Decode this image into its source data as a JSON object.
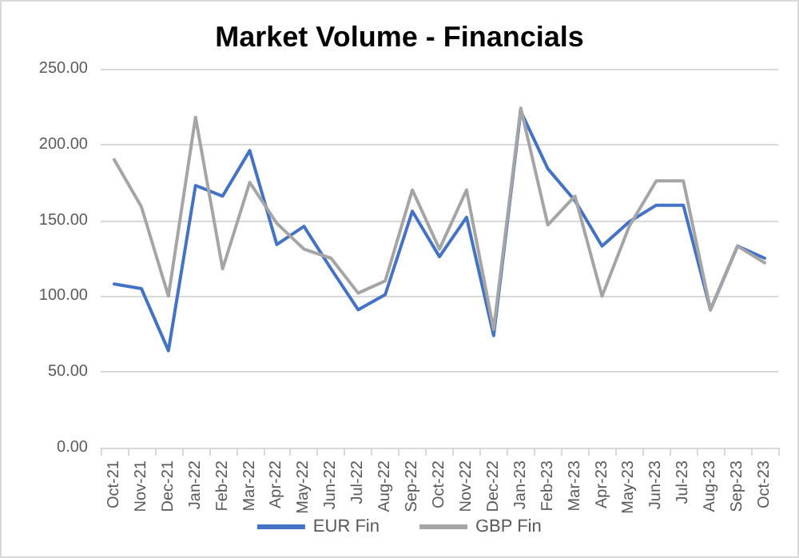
{
  "chart_data": {
    "type": "line",
    "title": "Market Volume - Financials",
    "categories": [
      "Oct-21",
      "Nov-21",
      "Dec-21",
      "Jan-22",
      "Feb-22",
      "Mar-22",
      "Apr-22",
      "May-22",
      "Jun-22",
      "Jul-22",
      "Aug-22",
      "Sep-22",
      "Oct-22",
      "Nov-22",
      "Dec-22",
      "Jan-23",
      "Feb-23",
      "Mar-23",
      "Apr-23",
      "May-23",
      "Jun-23",
      "Jul-23",
      "Aug-23",
      "Sep-23",
      "Oct-23"
    ],
    "series": [
      {
        "name": "EUR Fin",
        "color": "#4472c4",
        "values": [
          108,
          105,
          64,
          173,
          166,
          196,
          134,
          146,
          118,
          91,
          101,
          156,
          126,
          152,
          74,
          222,
          184,
          163,
          133,
          149,
          160,
          160,
          91,
          133,
          125
        ]
      },
      {
        "name": "GBP Fin",
        "color": "#a5a5a5",
        "values": [
          190,
          159,
          100,
          218,
          118,
          175,
          148,
          131,
          125,
          102,
          110,
          170,
          131,
          170,
          78,
          224,
          147,
          166,
          100,
          146,
          176,
          176,
          91,
          133,
          122
        ]
      }
    ],
    "ylim": [
      0,
      250
    ],
    "yticks": [
      {
        "value": 0,
        "label": "0.00"
      },
      {
        "value": 50,
        "label": "50.00"
      },
      {
        "value": 100,
        "label": "100.00"
      },
      {
        "value": 150,
        "label": "150.00"
      },
      {
        "value": 200,
        "label": "200.00"
      },
      {
        "value": 250,
        "label": "250.00"
      }
    ],
    "grid": "y",
    "legend": "bottom",
    "marker": "none",
    "line_style": "solid"
  }
}
